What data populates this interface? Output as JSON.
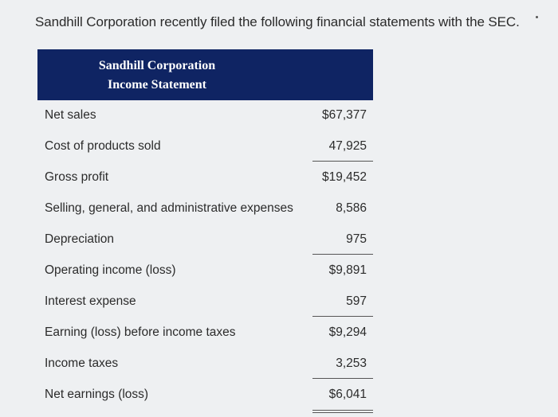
{
  "intro_text": "Sandhill Corporation recently filed the following financial statements with the SEC.",
  "statement": {
    "company": "Sandhill Corporation",
    "title": "Income Statement",
    "rows": [
      {
        "label": "Net sales",
        "amount": "$67,377"
      },
      {
        "label": "Cost of products sold",
        "amount": "47,925"
      },
      {
        "label": "Gross profit",
        "amount": "$19,452"
      },
      {
        "label": "Selling, general, and administrative expenses",
        "amount": "8,586"
      },
      {
        "label": "Depreciation",
        "amount": "975"
      },
      {
        "label": "Operating income (loss)",
        "amount": "$9,891"
      },
      {
        "label": "Interest expense",
        "amount": "597"
      },
      {
        "label": "Earning (loss) before income taxes",
        "amount": "$9,294"
      },
      {
        "label": "Income taxes",
        "amount": "3,253"
      },
      {
        "label": "Net earnings (loss)",
        "amount": "$6,041"
      }
    ]
  },
  "colors": {
    "header_bg": "#0f2463",
    "page_bg": "#eef0f2"
  }
}
